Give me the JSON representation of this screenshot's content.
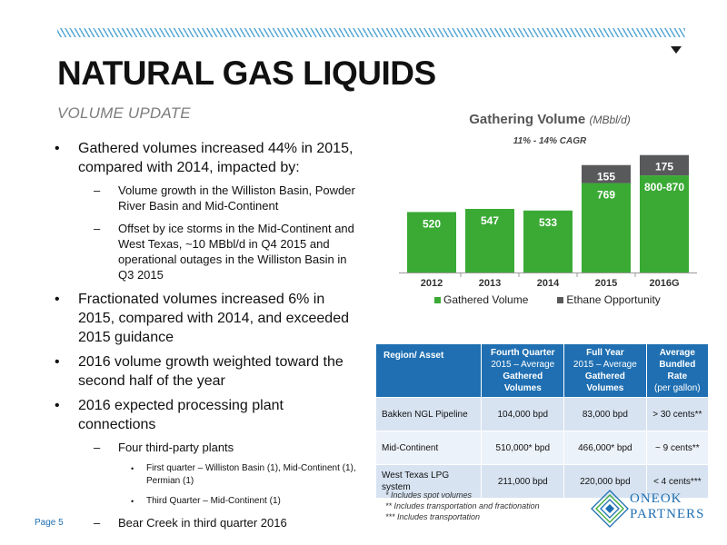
{
  "header": {
    "title": "NATURAL GAS LIQUIDS",
    "subtitle": "VOLUME UPDATE"
  },
  "bullets": {
    "b1": "Gathered volumes increased 44% in 2015, compared with 2014, impacted by:",
    "b1_sub1": "Volume growth in the Williston Basin, Powder River Basin and Mid-Continent",
    "b1_sub2": "Offset by ice storms in the Mid-Continent and West Texas, ~10 MBbl/d in Q4 2015 and operational outages in the Williston Basin in Q3 2015",
    "b2": "Fractionated volumes increased 6% in 2015, compared with 2014, and exceeded 2015 guidance",
    "b3": "2016 volume growth weighted toward the second half of the year",
    "b4": "2016 expected processing plant connections",
    "b4_sub1": "Four third-party plants",
    "b4_sub1_a": "First quarter – Williston Basin (1), Mid-Continent (1), Permian (1)",
    "b4_sub1_b": "Third Quarter – Mid-Continent (1)",
    "b4_sub2": "Bear Creek in third quarter 2016"
  },
  "footer": {
    "page": "Page 5"
  },
  "colors": {
    "accent": "#1f6fb2",
    "green": "#3aaa35",
    "gray": "#58595b",
    "hatch": "#5aa9d6"
  },
  "chart_data": {
    "type": "bar",
    "stacked": true,
    "title": "Gathering Volume",
    "title_unit": "(MBbl/d)",
    "annotation": "11% - 14% CAGR",
    "categories": [
      "2012",
      "2013",
      "2014",
      "2015",
      "2016G"
    ],
    "series": [
      {
        "name": "Gathered Volume",
        "values": [
          520,
          547,
          533,
          769,
          835
        ],
        "labels": [
          "520",
          "547",
          "533",
          "769",
          "800-870"
        ],
        "color": "#3aaa35"
      },
      {
        "name": "Ethane Opportunity",
        "values": [
          0,
          0,
          0,
          155,
          175
        ],
        "labels": [
          "",
          "",
          "",
          "155",
          "175"
        ],
        "color": "#58595b"
      }
    ],
    "legend": "bottom"
  },
  "table": {
    "headers": [
      {
        "l1": "Region/ Asset",
        "l2": "",
        "l3": ""
      },
      {
        "l1": "Fourth Quarter",
        "l2": "2015 – Average",
        "l3": "Gathered Volumes"
      },
      {
        "l1": "Full Year",
        "l2": "2015 – Average",
        "l3": "Gathered Volumes"
      },
      {
        "l1": "Average",
        "l2": "Bundled Rate",
        "l3": "(per gallon)"
      }
    ],
    "rows": [
      [
        "Bakken NGL Pipeline",
        "104,000 bpd",
        "83,000 bpd",
        "> 30 cents**"
      ],
      [
        "Mid-Continent",
        "510,000* bpd",
        "466,000* bpd",
        "~ 9 cents**"
      ],
      [
        "West Texas LPG system",
        "211,000 bpd",
        "220,000 bpd",
        "< 4 cents***"
      ]
    ]
  },
  "footnotes": [
    "* Includes spot volumes",
    "** Includes transportation and fractionation",
    "*** Includes transportation"
  ],
  "logo": {
    "line1": "ONEOK",
    "line2": "PARTNERS",
    "icon": "oneok-logo-icon"
  }
}
